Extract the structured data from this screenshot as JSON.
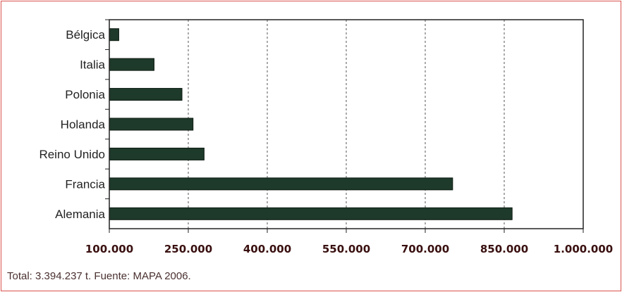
{
  "chart_data": {
    "type": "bar",
    "orientation": "horizontal",
    "categories": [
      "Bélgica",
      "Italia",
      "Polonia",
      "Holanda",
      "Reino Unido",
      "Francia",
      "Alemania"
    ],
    "values": [
      118000,
      185000,
      238000,
      259000,
      280000,
      752000,
      865000
    ],
    "x_ticks": [
      "100.000",
      "250.000",
      "400.000",
      "550.000",
      "700.000",
      "850.000",
      "1.000.000"
    ],
    "xlim": [
      100000,
      1000000
    ],
    "grid": "vertical dashed",
    "bar_color": "#1e3a2a",
    "tick_label_color": "#3a1010"
  },
  "caption": "Total: 3.394.237 t. Fuente: MAPA 2006.",
  "colors": {
    "frame_border": "#d9534f"
  }
}
